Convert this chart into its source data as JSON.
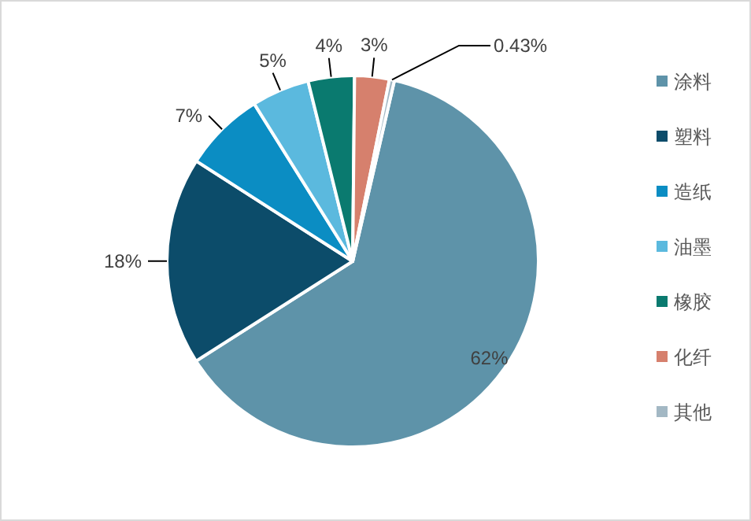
{
  "chart_data": {
    "type": "pie",
    "categories": [
      "涂料",
      "塑料",
      "造纸",
      "油墨",
      "橡胶",
      "化纤",
      "其他"
    ],
    "values": [
      62,
      18,
      7,
      5,
      4,
      3,
      0.43
    ],
    "colors": [
      "#5e93a9",
      "#0c4c6a",
      "#0b8dc3",
      "#5bb9de",
      "#0a7a6f",
      "#d6806d",
      "#a3b8c4"
    ],
    "value_labels": [
      "62%",
      "18%",
      "7%",
      "5%",
      "4%",
      "3%",
      "0.43%"
    ],
    "legend": "right"
  }
}
